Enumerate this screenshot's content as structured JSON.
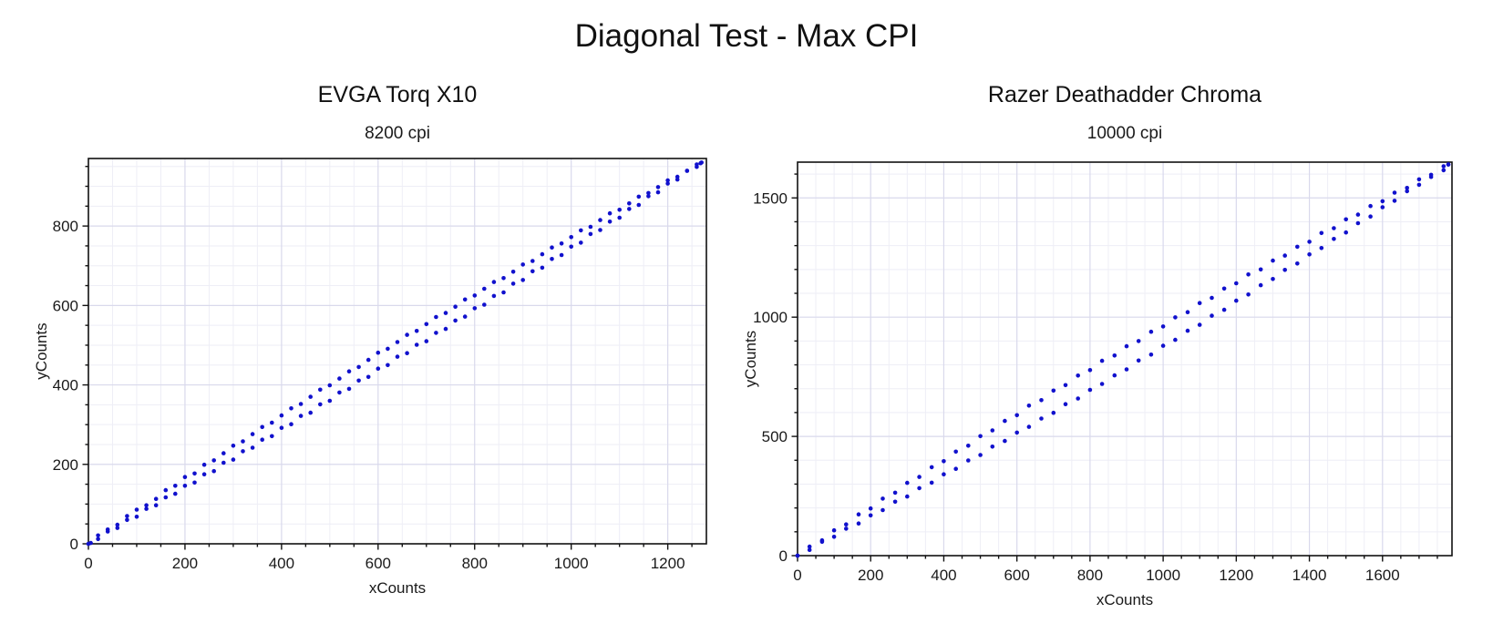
{
  "page_title": "Diagonal Test - Max CPI",
  "colors": {
    "dot": "#1111cd",
    "grid_major": "#d9d9ec",
    "grid_minor": "#eeeef6",
    "frame": "#111111",
    "text": "#1a1a1a"
  },
  "chart_data": [
    {
      "type": "scatter",
      "title": "EVGA Torq X10",
      "subtitle": "8200 cpi",
      "xlabel": "xCounts",
      "ylabel": "yCounts",
      "axes": {
        "xmin": 0,
        "xmax": 1280,
        "x_major_step": 200,
        "x_minor_step": 50,
        "ymin": 0,
        "ymax": 970,
        "y_major_step": 200,
        "y_minor_step": 50,
        "x_tick_labels": [
          0,
          200,
          400,
          600,
          800,
          1000,
          1200
        ],
        "y_tick_labels": [
          0,
          200,
          400,
          600,
          800
        ],
        "grid": true,
        "legend": "none"
      },
      "series": [
        {
          "name": "trace-upper",
          "points": [
            [
              0,
              0
            ],
            [
              20,
              21
            ],
            [
              40,
              36
            ],
            [
              60,
              48
            ],
            [
              80,
              70
            ],
            [
              100,
              86
            ],
            [
              120,
              97
            ],
            [
              140,
              113
            ],
            [
              160,
              135
            ],
            [
              180,
              146
            ],
            [
              200,
              168
            ],
            [
              220,
              177
            ],
            [
              240,
              199
            ],
            [
              260,
              210
            ],
            [
              280,
              228
            ],
            [
              300,
              247
            ],
            [
              320,
              258
            ],
            [
              340,
              276
            ],
            [
              360,
              294
            ],
            [
              380,
              305
            ],
            [
              400,
              323
            ],
            [
              420,
              341
            ],
            [
              440,
              352
            ],
            [
              460,
              370
            ],
            [
              480,
              388
            ],
            [
              500,
              399
            ],
            [
              520,
              416
            ],
            [
              540,
              434
            ],
            [
              560,
              445
            ],
            [
              580,
              463
            ],
            [
              600,
              481
            ],
            [
              620,
              491
            ],
            [
              640,
              508
            ],
            [
              660,
              526
            ],
            [
              680,
              536
            ],
            [
              700,
              553
            ],
            [
              720,
              571
            ],
            [
              740,
              581
            ],
            [
              760,
              597
            ],
            [
              780,
              615
            ],
            [
              800,
              625
            ],
            [
              820,
              642
            ],
            [
              840,
              659
            ],
            [
              860,
              669
            ],
            [
              880,
              685
            ],
            [
              900,
              703
            ],
            [
              920,
              712
            ],
            [
              940,
              729
            ],
            [
              960,
              746
            ],
            [
              980,
              756
            ],
            [
              1000,
              772
            ],
            [
              1020,
              789
            ],
            [
              1040,
              798
            ],
            [
              1060,
              815
            ],
            [
              1080,
              832
            ],
            [
              1100,
              841
            ],
            [
              1120,
              857
            ],
            [
              1140,
              874
            ],
            [
              1160,
              883
            ],
            [
              1180,
              898
            ],
            [
              1200,
              915
            ],
            [
              1220,
              924
            ],
            [
              1240,
              939
            ],
            [
              1260,
              955
            ],
            [
              1270,
              960
            ]
          ]
        },
        {
          "name": "trace-lower",
          "points": [
            [
              5,
              2
            ],
            [
              20,
              12
            ],
            [
              40,
              31
            ],
            [
              60,
              40
            ],
            [
              80,
              60
            ],
            [
              100,
              68
            ],
            [
              120,
              88
            ],
            [
              140,
              97
            ],
            [
              160,
              117
            ],
            [
              180,
              126
            ],
            [
              200,
              146
            ],
            [
              220,
              154
            ],
            [
              240,
              175
            ],
            [
              260,
              183
            ],
            [
              280,
              204
            ],
            [
              300,
              212
            ],
            [
              320,
              233
            ],
            [
              340,
              242
            ],
            [
              360,
              262
            ],
            [
              380,
              271
            ],
            [
              400,
              292
            ],
            [
              420,
              301
            ],
            [
              440,
              322
            ],
            [
              460,
              330
            ],
            [
              480,
              351
            ],
            [
              500,
              360
            ],
            [
              520,
              381
            ],
            [
              540,
              390
            ],
            [
              560,
              411
            ],
            [
              580,
              420
            ],
            [
              600,
              441
            ],
            [
              620,
              450
            ],
            [
              640,
              471
            ],
            [
              660,
              480
            ],
            [
              680,
              501
            ],
            [
              700,
              510
            ],
            [
              720,
              531
            ],
            [
              740,
              541
            ],
            [
              760,
              562
            ],
            [
              780,
              572
            ],
            [
              800,
              593
            ],
            [
              820,
              602
            ],
            [
              840,
              624
            ],
            [
              860,
              633
            ],
            [
              880,
              655
            ],
            [
              900,
              664
            ],
            [
              920,
              686
            ],
            [
              940,
              695
            ],
            [
              960,
              717
            ],
            [
              980,
              727
            ],
            [
              1000,
              748
            ],
            [
              1020,
              758
            ],
            [
              1040,
              780
            ],
            [
              1060,
              790
            ],
            [
              1080,
              811
            ],
            [
              1100,
              821
            ],
            [
              1120,
              843
            ],
            [
              1140,
              853
            ],
            [
              1160,
              875
            ],
            [
              1180,
              885
            ],
            [
              1200,
              907
            ],
            [
              1220,
              917
            ],
            [
              1240,
              939
            ],
            [
              1260,
              949
            ],
            [
              1268,
              958
            ]
          ]
        }
      ]
    },
    {
      "type": "scatter",
      "title": "Razer Deathadder Chroma",
      "subtitle": "10000 cpi",
      "xlabel": "xCounts",
      "ylabel": "yCounts",
      "axes": {
        "xmin": 0,
        "xmax": 1790,
        "x_major_step": 200,
        "x_minor_step": 50,
        "ymin": 0,
        "ymax": 1650,
        "y_major_step": 500,
        "y_minor_step": 100,
        "x_tick_labels": [
          0,
          200,
          400,
          600,
          800,
          1000,
          1200,
          1400,
          1600
        ],
        "y_tick_labels": [
          0,
          500,
          1000,
          1500
        ],
        "grid": true,
        "legend": "none"
      },
      "series": [
        {
          "name": "trace-upper",
          "points": [
            [
              0,
              0
            ],
            [
              33,
              38
            ],
            [
              67,
              64
            ],
            [
              100,
              106
            ],
            [
              133,
              131
            ],
            [
              167,
              173
            ],
            [
              200,
              198
            ],
            [
              233,
              239
            ],
            [
              267,
              264
            ],
            [
              300,
              305
            ],
            [
              333,
              330
            ],
            [
              367,
              371
            ],
            [
              400,
              396
            ],
            [
              433,
              436
            ],
            [
              467,
              461
            ],
            [
              500,
              501
            ],
            [
              533,
              525
            ],
            [
              567,
              565
            ],
            [
              600,
              589
            ],
            [
              633,
              629
            ],
            [
              667,
              652
            ],
            [
              700,
              692
            ],
            [
              733,
              715
            ],
            [
              767,
              755
            ],
            [
              800,
              778
            ],
            [
              833,
              817
            ],
            [
              867,
              839
            ],
            [
              900,
              878
            ],
            [
              933,
              900
            ],
            [
              967,
              939
            ],
            [
              1000,
              961
            ],
            [
              1033,
              999
            ],
            [
              1067,
              1021
            ],
            [
              1100,
              1059
            ],
            [
              1133,
              1081
            ],
            [
              1167,
              1120
            ],
            [
              1200,
              1142
            ],
            [
              1233,
              1179
            ],
            [
              1267,
              1200
            ],
            [
              1300,
              1237
            ],
            [
              1333,
              1258
            ],
            [
              1367,
              1295
            ],
            [
              1400,
              1316
            ],
            [
              1433,
              1353
            ],
            [
              1467,
              1373
            ],
            [
              1500,
              1410
            ],
            [
              1533,
              1430
            ],
            [
              1567,
              1466
            ],
            [
              1600,
              1486
            ],
            [
              1633,
              1522
            ],
            [
              1667,
              1542
            ],
            [
              1700,
              1578
            ],
            [
              1733,
              1597
            ],
            [
              1767,
              1633
            ],
            [
              1780,
              1640
            ]
          ]
        },
        {
          "name": "trace-lower",
          "points": [
            [
              0,
              0
            ],
            [
              33,
              24
            ],
            [
              67,
              58
            ],
            [
              100,
              79
            ],
            [
              133,
              113
            ],
            [
              167,
              135
            ],
            [
              200,
              169
            ],
            [
              233,
              191
            ],
            [
              267,
              226
            ],
            [
              300,
              248
            ],
            [
              333,
              283
            ],
            [
              367,
              306
            ],
            [
              400,
              341
            ],
            [
              433,
              364
            ],
            [
              467,
              399
            ],
            [
              500,
              422
            ],
            [
              533,
              457
            ],
            [
              567,
              481
            ],
            [
              600,
              516
            ],
            [
              633,
              540
            ],
            [
              667,
              575
            ],
            [
              700,
              599
            ],
            [
              733,
              635
            ],
            [
              767,
              659
            ],
            [
              800,
              695
            ],
            [
              833,
              720
            ],
            [
              867,
              756
            ],
            [
              900,
              781
            ],
            [
              933,
              818
            ],
            [
              967,
              843
            ],
            [
              1000,
              880
            ],
            [
              1033,
              905
            ],
            [
              1067,
              943
            ],
            [
              1100,
              968
            ],
            [
              1133,
              1006
            ],
            [
              1167,
              1031
            ],
            [
              1200,
              1069
            ],
            [
              1233,
              1095
            ],
            [
              1267,
              1134
            ],
            [
              1300,
              1160
            ],
            [
              1333,
              1198
            ],
            [
              1367,
              1225
            ],
            [
              1400,
              1263
            ],
            [
              1433,
              1290
            ],
            [
              1467,
              1328
            ],
            [
              1500,
              1355
            ],
            [
              1533,
              1394
            ],
            [
              1567,
              1422
            ],
            [
              1600,
              1461
            ],
            [
              1633,
              1488
            ],
            [
              1667,
              1528
            ],
            [
              1700,
              1555
            ],
            [
              1733,
              1588
            ],
            [
              1767,
              1616
            ],
            [
              1780,
              1640
            ]
          ]
        }
      ]
    }
  ]
}
